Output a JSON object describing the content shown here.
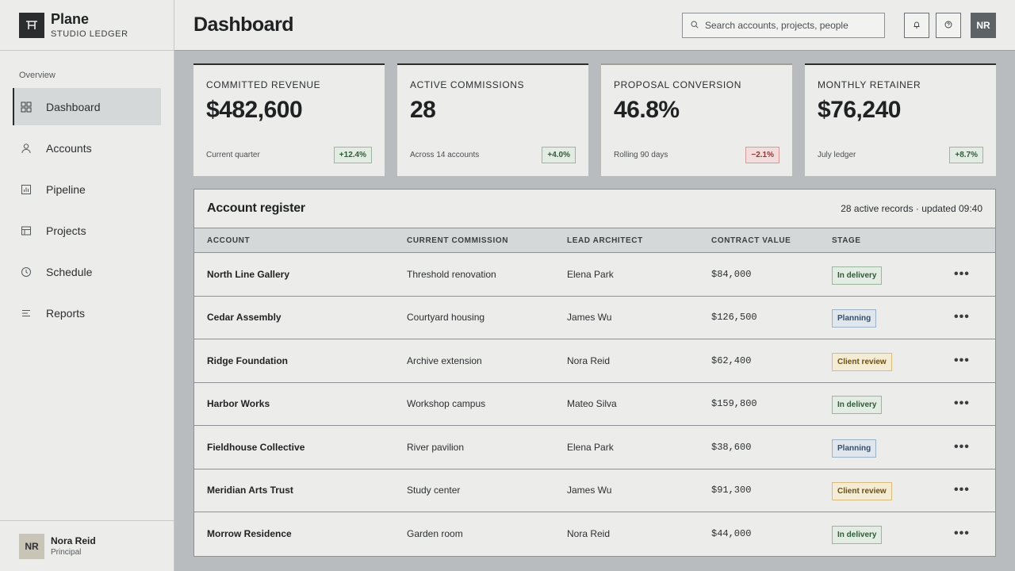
{
  "brand": {
    "name": "Plane",
    "subtitle": "STUDIO LEDGER"
  },
  "sidebar": {
    "heading": "Overview",
    "items": [
      {
        "label": "Dashboard",
        "icon": "grid-icon",
        "active": true
      },
      {
        "label": "Accounts",
        "icon": "user-icon"
      },
      {
        "label": "Pipeline",
        "icon": "chart-icon"
      },
      {
        "label": "Projects",
        "icon": "table-icon"
      },
      {
        "label": "Schedule",
        "icon": "clock-icon"
      },
      {
        "label": "Reports",
        "icon": "list-icon"
      }
    ],
    "user": {
      "initials": "NR",
      "name": "Nora Reid",
      "role": "Principal"
    }
  },
  "header": {
    "title": "Dashboard",
    "search_placeholder": "Search accounts, projects, people",
    "avatar_initials": "NR"
  },
  "kpis": [
    {
      "label": "COMMITTED REVENUE",
      "value": "$482,600",
      "note": "Current quarter",
      "delta": "+12.4%",
      "trend": "pos"
    },
    {
      "label": "ACTIVE COMMISSIONS",
      "value": "28",
      "note": "Across 14 accounts",
      "delta": "+4.0%",
      "trend": "pos"
    },
    {
      "label": "PROPOSAL CONVERSION",
      "value": "46.8%",
      "note": "Rolling 90 days",
      "delta": "−2.1%",
      "trend": "neg"
    },
    {
      "label": "MONTHLY RETAINER",
      "value": "$76,240",
      "note": "July ledger",
      "delta": "+8.7%",
      "trend": "pos"
    }
  ],
  "register": {
    "title": "Account register",
    "meta": "28 active records · updated 09:40",
    "columns": [
      "ACCOUNT",
      "CURRENT COMMISSION",
      "LEAD ARCHITECT",
      "CONTRACT VALUE",
      "STAGE"
    ],
    "rows": [
      {
        "account": "North Line Gallery",
        "commission": "Threshold renovation",
        "lead": "Elena Park",
        "value": "$84,000",
        "stage": "In delivery",
        "stage_type": "delivery"
      },
      {
        "account": "Cedar Assembly",
        "commission": "Courtyard housing",
        "lead": "James Wu",
        "value": "$126,500",
        "stage": "Planning",
        "stage_type": "planning"
      },
      {
        "account": "Ridge Foundation",
        "commission": "Archive extension",
        "lead": "Nora Reid",
        "value": "$62,400",
        "stage": "Client review",
        "stage_type": "review"
      },
      {
        "account": "Harbor Works",
        "commission": "Workshop campus",
        "lead": "Mateo Silva",
        "value": "$159,800",
        "stage": "In delivery",
        "stage_type": "delivery"
      },
      {
        "account": "Fieldhouse Collective",
        "commission": "River pavilion",
        "lead": "Elena Park",
        "value": "$38,600",
        "stage": "Planning",
        "stage_type": "planning"
      },
      {
        "account": "Meridian Arts Trust",
        "commission": "Study center",
        "lead": "James Wu",
        "value": "$91,300",
        "stage": "Client review",
        "stage_type": "review"
      },
      {
        "account": "Morrow Residence",
        "commission": "Garden room",
        "lead": "Nora Reid",
        "value": "$44,000",
        "stage": "In delivery",
        "stage_type": "delivery"
      }
    ]
  }
}
